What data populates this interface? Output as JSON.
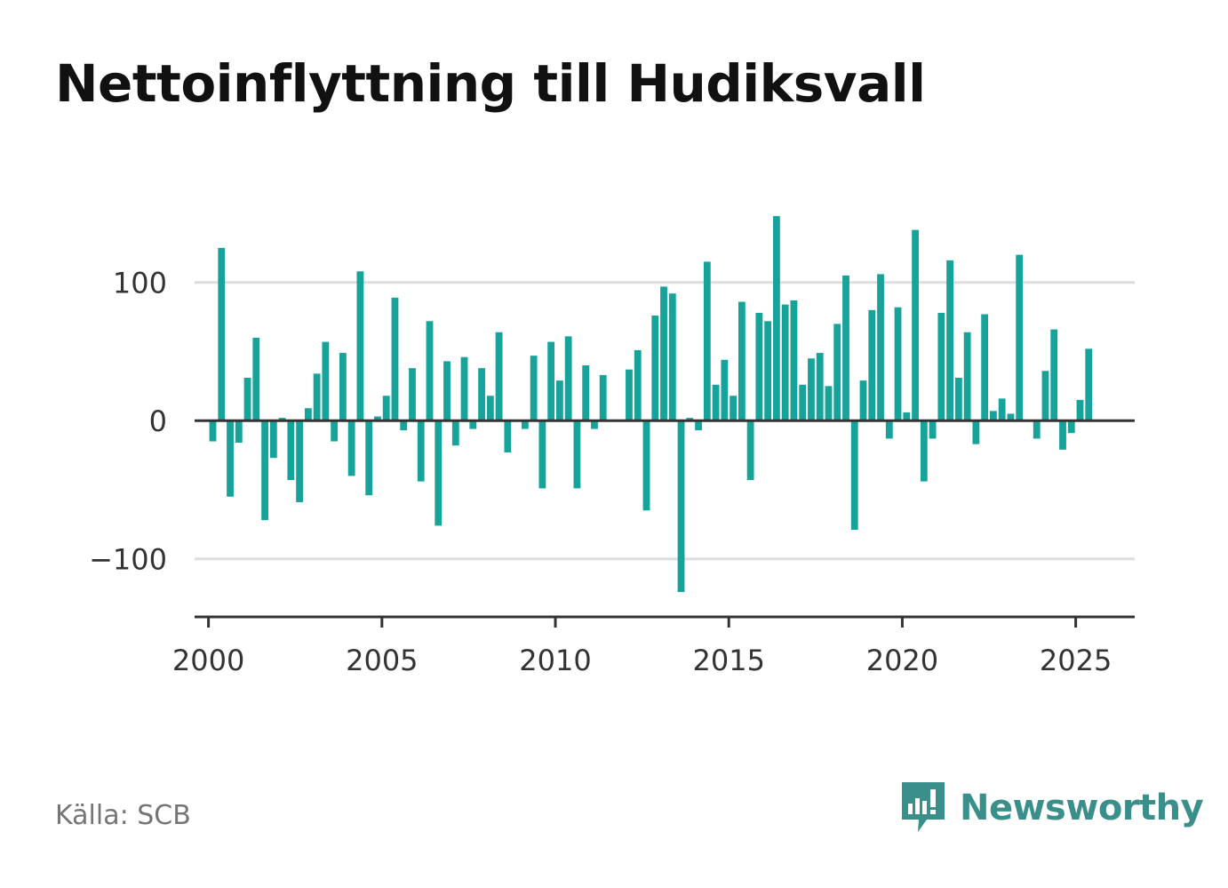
{
  "title": "Nettoinflyttning till Hudiksvall",
  "source": "Källa: SCB",
  "brand": {
    "name": "Newsworthy",
    "icon": "newsworthy-logo-icon"
  },
  "colors": {
    "bar": "#16a39a",
    "grid": "#dddddd",
    "axis": "#333333",
    "brand": "#3a8f8a"
  },
  "chart_data": {
    "type": "bar",
    "title": "Nettoinflyttning till Hudiksvall",
    "xlabel": "",
    "ylabel": "",
    "x_ticks": [
      2000,
      2005,
      2010,
      2015,
      2020,
      2025
    ],
    "y_ticks": [
      -100,
      0,
      100
    ],
    "y_tick_labels": [
      "−100",
      "0",
      "100"
    ],
    "xlim": [
      1999.6,
      2026.7
    ],
    "ylim": [
      -142,
      150
    ],
    "grid": true,
    "series": [
      {
        "values": [
          [
            2000.125,
            -15
          ],
          [
            2000.375,
            125
          ],
          [
            2000.625,
            -55
          ],
          [
            2000.875,
            -16
          ],
          [
            2001.125,
            31
          ],
          [
            2001.375,
            60
          ],
          [
            2001.625,
            -72
          ],
          [
            2001.875,
            -27
          ],
          [
            2002.125,
            2
          ],
          [
            2002.375,
            -43
          ],
          [
            2002.625,
            -59
          ],
          [
            2002.875,
            9
          ],
          [
            2003.125,
            34
          ],
          [
            2003.375,
            57
          ],
          [
            2003.625,
            -15
          ],
          [
            2003.875,
            49
          ],
          [
            2004.125,
            -40
          ],
          [
            2004.375,
            108
          ],
          [
            2004.625,
            -54
          ],
          [
            2004.875,
            3
          ],
          [
            2005.125,
            18
          ],
          [
            2005.375,
            89
          ],
          [
            2005.625,
            -7
          ],
          [
            2005.875,
            38
          ],
          [
            2006.125,
            -44
          ],
          [
            2006.375,
            72
          ],
          [
            2006.625,
            -76
          ],
          [
            2006.875,
            43
          ],
          [
            2007.125,
            -18
          ],
          [
            2007.375,
            46
          ],
          [
            2007.625,
            -6
          ],
          [
            2007.875,
            38
          ],
          [
            2008.125,
            18
          ],
          [
            2008.375,
            64
          ],
          [
            2008.625,
            -23
          ],
          [
            2009.125,
            -6
          ],
          [
            2009.375,
            47
          ],
          [
            2009.625,
            -49
          ],
          [
            2009.875,
            57
          ],
          [
            2010.125,
            29
          ],
          [
            2010.375,
            61
          ],
          [
            2010.625,
            -49
          ],
          [
            2010.875,
            40
          ],
          [
            2011.125,
            -6
          ],
          [
            2011.375,
            33
          ],
          [
            2012.125,
            37
          ],
          [
            2012.375,
            51
          ],
          [
            2012.625,
            -65
          ],
          [
            2012.875,
            76
          ],
          [
            2013.125,
            97
          ],
          [
            2013.375,
            92
          ],
          [
            2013.625,
            -124
          ],
          [
            2013.875,
            2
          ],
          [
            2014.125,
            -7
          ],
          [
            2014.375,
            115
          ],
          [
            2014.625,
            26
          ],
          [
            2014.875,
            44
          ],
          [
            2015.125,
            18
          ],
          [
            2015.375,
            86
          ],
          [
            2015.625,
            -43
          ],
          [
            2015.875,
            78
          ],
          [
            2016.125,
            72
          ],
          [
            2016.375,
            148
          ],
          [
            2016.625,
            84
          ],
          [
            2016.875,
            87
          ],
          [
            2017.125,
            26
          ],
          [
            2017.375,
            45
          ],
          [
            2017.625,
            49
          ],
          [
            2017.875,
            25
          ],
          [
            2018.125,
            70
          ],
          [
            2018.375,
            105
          ],
          [
            2018.625,
            -79
          ],
          [
            2018.875,
            29
          ],
          [
            2019.125,
            80
          ],
          [
            2019.375,
            106
          ],
          [
            2019.625,
            -13
          ],
          [
            2019.875,
            82
          ],
          [
            2020.125,
            6
          ],
          [
            2020.375,
            138
          ],
          [
            2020.625,
            -44
          ],
          [
            2020.875,
            -13
          ],
          [
            2021.125,
            78
          ],
          [
            2021.375,
            116
          ],
          [
            2021.625,
            31
          ],
          [
            2021.875,
            64
          ],
          [
            2022.125,
            -17
          ],
          [
            2022.375,
            77
          ],
          [
            2022.625,
            7
          ],
          [
            2022.875,
            16
          ],
          [
            2023.125,
            5
          ],
          [
            2023.375,
            120
          ],
          [
            2023.875,
            -13
          ],
          [
            2024.125,
            36
          ],
          [
            2024.375,
            66
          ],
          [
            2024.625,
            -21
          ],
          [
            2024.875,
            -9
          ],
          [
            2025.125,
            15
          ],
          [
            2025.375,
            52
          ]
        ]
      }
    ]
  }
}
